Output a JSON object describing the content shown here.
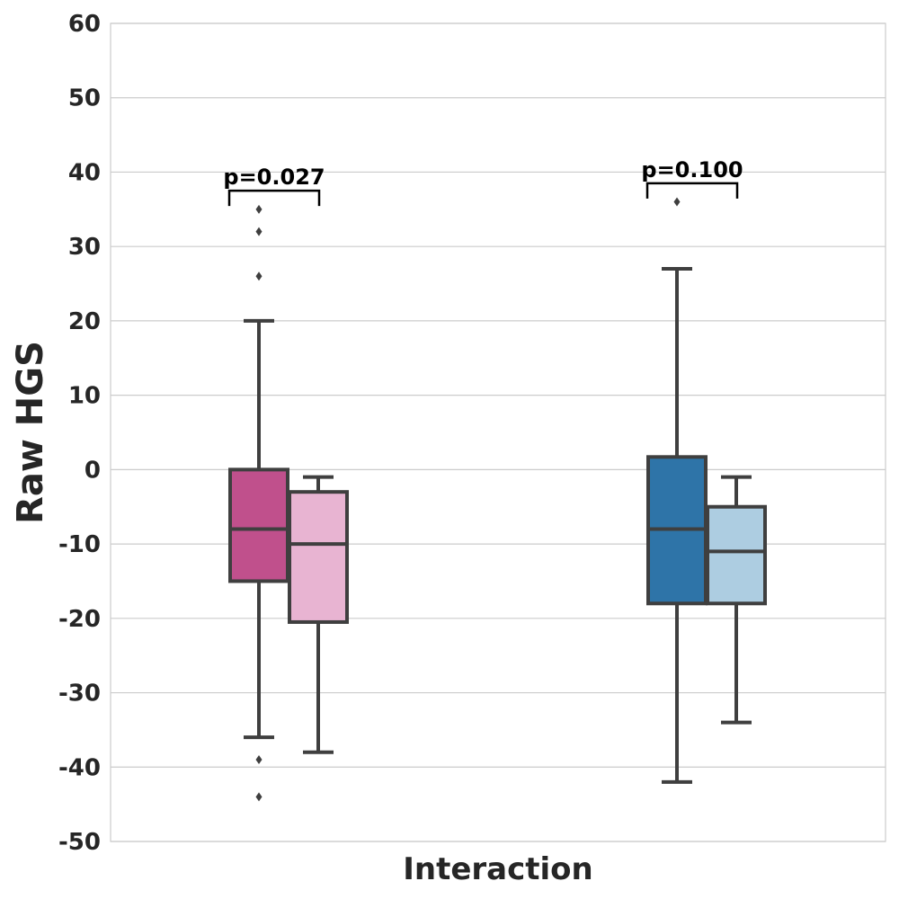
{
  "chart_data": {
    "type": "box",
    "xlabel": "Interaction",
    "ylabel": "Raw HGS",
    "ylim": [
      -50,
      60
    ],
    "yticks": [
      60,
      50,
      40,
      30,
      20,
      10,
      0,
      -10,
      -20,
      -30,
      -40,
      -50
    ],
    "grid": true,
    "legend": "none",
    "groups": [
      {
        "boxes": [
          {
            "color": "#c0508c",
            "q1": -15,
            "median": -8,
            "q3": 0,
            "whisker_low": -36,
            "whisker_high": 20,
            "outliers": [
              26,
              32,
              35,
              -39,
              -44
            ]
          },
          {
            "color": "#e8b4d2",
            "q1": -20.5,
            "median": -10,
            "q3": -3,
            "whisker_low": -38,
            "whisker_high": -1,
            "outliers": []
          }
        ],
        "annotation": {
          "text": "p=0.027",
          "y": 37.5
        }
      },
      {
        "boxes": [
          {
            "color": "#2e74a8",
            "q1": -18,
            "median": -8,
            "q3": 1.7,
            "whisker_low": -42,
            "whisker_high": 27,
            "outliers": [
              36
            ]
          },
          {
            "color": "#adcde1",
            "q1": -18,
            "median": -11,
            "q3": -5,
            "whisker_low": -34,
            "whisker_high": -1,
            "outliers": []
          }
        ],
        "annotation": {
          "text": "p=0.100",
          "y": 38.5
        }
      }
    ]
  }
}
